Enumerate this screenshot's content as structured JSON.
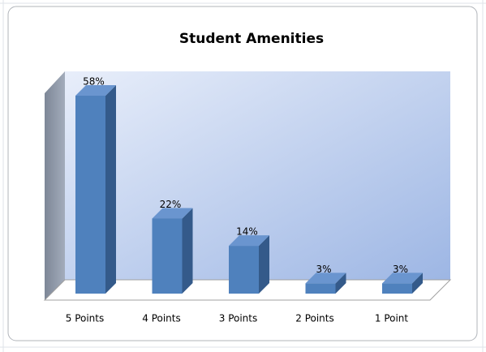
{
  "chart_data": {
    "type": "bar3d",
    "title": "Student Amenities",
    "categories": [
      "5 Points",
      "4 Points",
      "3 Points",
      "2 Points",
      "1 Point"
    ],
    "values": [
      58,
      22,
      14,
      3,
      3
    ],
    "value_labels": [
      "58%",
      "22%",
      "14%",
      "3%",
      "3%"
    ],
    "color": "#4f81bd"
  }
}
